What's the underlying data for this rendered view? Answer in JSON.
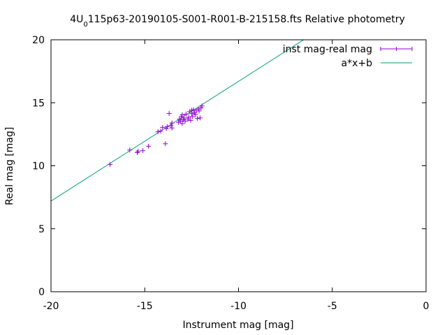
{
  "chart_data": {
    "type": "scatter",
    "title": {
      "prefix": "4U",
      "subscript": "0",
      "suffix": "115p63-20190105-S001-R001-B-215158.fts Relative photometry"
    },
    "xlabel": "Instrument mag [mag]",
    "ylabel": "Real mag [mag]",
    "xlim": [
      -20,
      0
    ],
    "ylim": [
      0,
      20
    ],
    "xticks": [
      -20,
      -15,
      -10,
      -5,
      0
    ],
    "yticks": [
      0,
      5,
      10,
      15,
      20
    ],
    "xtick_labels": [
      "-20",
      "-15",
      "-10",
      "-5",
      "0"
    ],
    "ytick_labels": [
      "0",
      "5",
      "10",
      "15",
      "20"
    ],
    "grid": false,
    "legend_position": "top-right",
    "series": [
      {
        "name": "inst mag-real mag",
        "kind": "points",
        "color": "#9400d3",
        "points": [
          [
            -16.85,
            10.1
          ],
          [
            -15.8,
            11.25
          ],
          [
            -15.4,
            11.05
          ],
          [
            -15.35,
            11.15
          ],
          [
            -15.1,
            11.2
          ],
          [
            -14.8,
            11.55
          ],
          [
            -14.3,
            12.7
          ],
          [
            -14.15,
            12.75
          ],
          [
            -14.05,
            13.05
          ],
          [
            -13.9,
            11.75
          ],
          [
            -13.85,
            12.95
          ],
          [
            -13.8,
            13.1
          ],
          [
            -13.7,
            14.15
          ],
          [
            -13.6,
            13.2
          ],
          [
            -13.55,
            13.4
          ],
          [
            -13.55,
            13.0
          ],
          [
            -13.2,
            13.45
          ],
          [
            -13.15,
            13.7
          ],
          [
            -13.1,
            13.55
          ],
          [
            -13.05,
            13.9
          ],
          [
            -13.0,
            13.35
          ],
          [
            -13.0,
            14.05
          ],
          [
            -12.95,
            13.65
          ],
          [
            -12.9,
            13.8
          ],
          [
            -12.85,
            13.55
          ],
          [
            -12.8,
            14.1
          ],
          [
            -12.7,
            13.7
          ],
          [
            -12.65,
            13.85
          ],
          [
            -12.6,
            14.3
          ],
          [
            -12.55,
            13.6
          ],
          [
            -12.5,
            14.15
          ],
          [
            -12.5,
            14.4
          ],
          [
            -12.45,
            13.9
          ],
          [
            -12.4,
            14.45
          ],
          [
            -12.35,
            14.2
          ],
          [
            -12.3,
            14.05
          ],
          [
            -12.25,
            14.35
          ],
          [
            -12.2,
            13.75
          ],
          [
            -12.15,
            14.5
          ],
          [
            -12.1,
            14.35
          ],
          [
            -12.05,
            13.8
          ],
          [
            -12.0,
            14.6
          ],
          [
            -11.95,
            14.75
          ]
        ]
      },
      {
        "name": "a*x+b",
        "kind": "line",
        "color": "#009e73",
        "slope": 0.95,
        "intercept": 26.2
      }
    ]
  }
}
